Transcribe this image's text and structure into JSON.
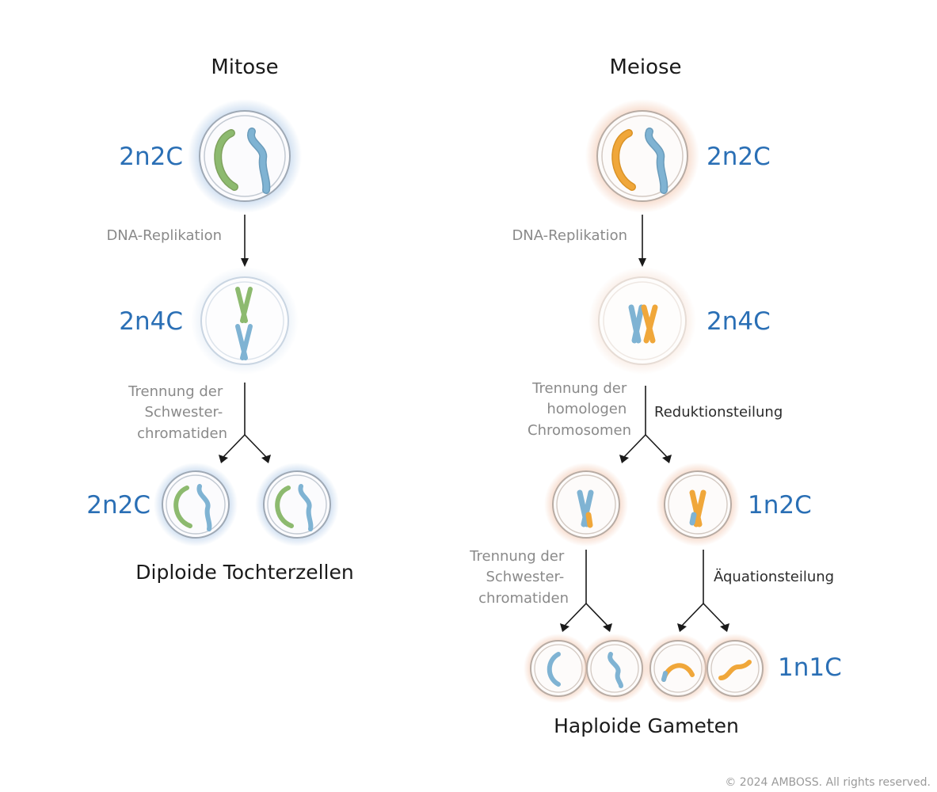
{
  "mitosis": {
    "title": "Mitose",
    "ploidy_start": "2n2C",
    "step_replication": "DNA-Replikation",
    "ploidy_replicated": "2n4C",
    "step_separation": [
      "Trennung der",
      "Schwester-",
      "chromatiden"
    ],
    "ploidy_daughters": "2n2C",
    "result": "Diploide Tochterzellen"
  },
  "meiosis": {
    "title": "Meiose",
    "ploidy_start": "2n2C",
    "step_replication": "DNA-Replikation",
    "ploidy_replicated": "2n4C",
    "step_separation_1": [
      "Trennung der",
      "homologen",
      "Chromosomen"
    ],
    "division_1": "Reduktionsteilung",
    "ploidy_after_1": "1n2C",
    "step_separation_2": [
      "Trennung der",
      "Schwester-",
      "chromatiden"
    ],
    "division_2": "Äquationsteilung",
    "ploidy_gametes": "1n1C",
    "result": "Haploide Gameten"
  },
  "copyright": "© 2024 AMBOSS. All rights reserved.",
  "colors": {
    "ploidy_blue": "#2a6fb5",
    "chromosome_green": "#8dba6f",
    "chromosome_blue": "#7fb3d3",
    "chromosome_orange": "#f0a73a",
    "mitosis_glow": "#b9d0ea",
    "meiosis_glow": "#f3cbb5"
  }
}
